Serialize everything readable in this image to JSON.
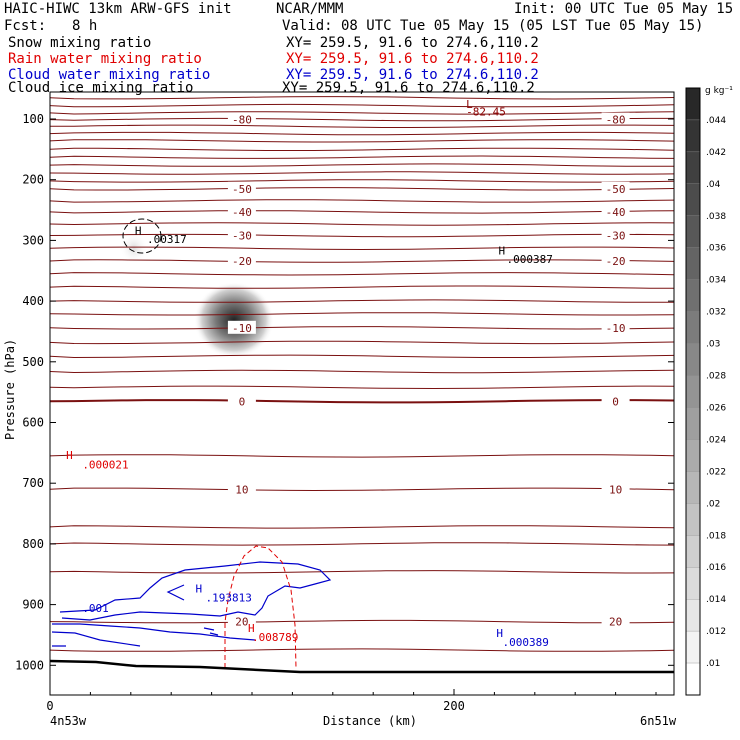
{
  "header": {
    "title_left": "HAIC-HIWC 13km ARW-GFS init",
    "org": "NCAR/MMM",
    "init": "Init: 00 UTC Tue 05 May 15",
    "fcst_label": "Fcst:",
    "fcst_value": "8 h",
    "valid": "Valid: 08 UTC Tue 05 May 15 (05 LST Tue 05 May 15)",
    "fields": [
      {
        "name": "Snow mixing ratio",
        "xy": "XY= 259.5, 91.6 to 274.6,110.2",
        "color": "#000000"
      },
      {
        "name": "Rain water mixing ratio",
        "xy": "XY= 259.5, 91.6 to 274.6,110.2",
        "color": "#e00000"
      },
      {
        "name": "Cloud water mixing ratio",
        "xy": "XY= 259.5, 91.6 to 274.6,110.2",
        "color": "#0000cc"
      },
      {
        "name": "Cloud ice mixing ratio",
        "xy": "XY= 259.5, 91.6 to 274.6,110.2",
        "color": "#000000"
      }
    ]
  },
  "chart_data": {
    "type": "contour",
    "xlabel": "Distance (km)",
    "ylabel": "Pressure (hPa)",
    "xlim": [
      0,
      300
    ],
    "ylim": [
      1050,
      50
    ],
    "x_ticks": [
      "0",
      "200"
    ],
    "x_tick_values": [
      0,
      200
    ],
    "y_ticks": [
      "100",
      "200",
      "300",
      "400",
      "500",
      "600",
      "700",
      "800",
      "900",
      "1000"
    ],
    "y_tick_values": [
      100,
      200,
      300,
      400,
      500,
      600,
      700,
      800,
      900,
      1000
    ],
    "left_endpoint": "4n53w",
    "right_endpoint": "6n51w",
    "temperature_lines": [
      {
        "p": 65,
        "label": ""
      },
      {
        "p": 78,
        "label": ""
      },
      {
        "p": 90,
        "label": ""
      },
      {
        "p": 101,
        "label": "-80"
      },
      {
        "p": 112,
        "label": ""
      },
      {
        "p": 124,
        "label": ""
      },
      {
        "p": 136,
        "label": ""
      },
      {
        "p": 150,
        "label": ""
      },
      {
        "p": 163,
        "label": ""
      },
      {
        "p": 176,
        "label": ""
      },
      {
        "p": 189,
        "label": ""
      },
      {
        "p": 202,
        "label": ""
      },
      {
        "p": 215,
        "label": "-50"
      },
      {
        "p": 235,
        "label": ""
      },
      {
        "p": 253,
        "label": "-40"
      },
      {
        "p": 273,
        "label": ""
      },
      {
        "p": 292,
        "label": "-30"
      },
      {
        "p": 313,
        "label": ""
      },
      {
        "p": 334,
        "label": "-20"
      },
      {
        "p": 355,
        "label": ""
      },
      {
        "p": 377,
        "label": ""
      },
      {
        "p": 400,
        "label": ""
      },
      {
        "p": 421,
        "label": ""
      },
      {
        "p": 444,
        "label": "-10"
      },
      {
        "p": 468,
        "label": ""
      },
      {
        "p": 491,
        "label": ""
      },
      {
        "p": 516,
        "label": ""
      },
      {
        "p": 542,
        "label": ""
      },
      {
        "p": 565,
        "label": "0"
      },
      {
        "p": 655,
        "label": ""
      },
      {
        "p": 710,
        "label": "10"
      },
      {
        "p": 772,
        "label": ""
      },
      {
        "p": 800,
        "label": ""
      },
      {
        "p": 846,
        "label": ""
      },
      {
        "p": 928,
        "label": "20"
      },
      {
        "p": 975,
        "label": ""
      }
    ],
    "labels": [
      {
        "text": "L",
        "x": 206,
        "p": 82,
        "color": "#8b0000"
      },
      {
        "text": "-82.45",
        "x": 206,
        "p": 94,
        "color": "#8b0000"
      },
      {
        "text": "H",
        "x": 42,
        "p": 290,
        "color": "#000000"
      },
      {
        "text": ".00317",
        "x": 48,
        "p": 304,
        "color": "#000000"
      },
      {
        "text": "H",
        "x": 222,
        "p": 323,
        "color": "#000000"
      },
      {
        "text": ".000387",
        "x": 226,
        "p": 337,
        "color": "#000000"
      },
      {
        "text": "H",
        "x": 8,
        "p": 660,
        "color": "#e00000"
      },
      {
        "text": ".000021",
        "x": 16,
        "p": 676,
        "color": "#e00000"
      },
      {
        "text": "H",
        "x": 72,
        "p": 880,
        "color": "#0000cc"
      },
      {
        "text": ".193813",
        "x": 77,
        "p": 895,
        "color": "#0000cc"
      },
      {
        "text": ".001",
        "x": 16,
        "p": 912,
        "color": "#0000cc"
      },
      {
        "text": "H",
        "x": 98,
        "p": 945,
        "color": "#e00000"
      },
      {
        "text": ".008789",
        "x": 100,
        "p": 960,
        "color": "#e00000"
      },
      {
        "text": "H",
        "x": 221,
        "p": 953,
        "color": "#0000cc"
      },
      {
        "text": ".000389",
        "x": 224,
        "p": 968,
        "color": "#0000cc"
      }
    ],
    "colorbar": {
      "unit": "g kg⁻¹",
      "labels": [
        ".044",
        ".042",
        ".04",
        ".038",
        ".036",
        ".034",
        ".032",
        ".03",
        ".028",
        ".026",
        ".024",
        ".022",
        ".02",
        ".018",
        ".016",
        ".014",
        ".012",
        ".01"
      ]
    }
  }
}
